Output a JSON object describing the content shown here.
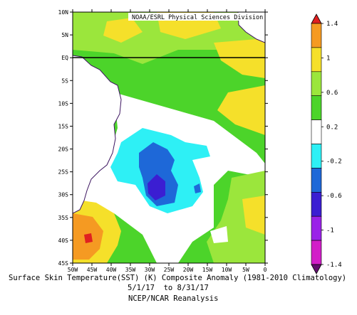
{
  "map": {
    "credit": "NOAA/ESRL Physical Sciences Division",
    "lat_labels": [
      "10N",
      "5N",
      "EQ",
      "5S",
      "10S",
      "15S",
      "20S",
      "25S",
      "30S",
      "35S",
      "40S",
      "45S"
    ],
    "lon_labels": [
      "50W",
      "45W",
      "40W",
      "35W",
      "30W",
      "25W",
      "20W",
      "15W",
      "10W",
      "5W",
      "0"
    ],
    "lat_range": [
      -45,
      10
    ],
    "lon_range": [
      -50,
      0
    ],
    "equator_line": "EQ",
    "colors": {
      "deep_red": "#e02020",
      "orange": "#f59a22",
      "yellow": "#f5e02a",
      "light_green": "#9be63c",
      "green": "#4cd42a",
      "white": "#ffffff",
      "cyan": "#2ef0f5",
      "blue": "#1e68d8",
      "indigo": "#3b1ed2",
      "purple": "#9a22e8",
      "magenta": "#d21ec8",
      "dark_purple": "#620e6e",
      "coast": "#3c1460"
    }
  },
  "colorbar": {
    "labels": [
      "1.4",
      "1",
      "0.6",
      "0.2",
      "-0.2",
      "-0.6",
      "-1",
      "-1.4"
    ],
    "levels": [
      {
        "color": "#f5e02a",
        "range": [
          1.0,
          1.4
        ]
      },
      {
        "color": "#f59a22",
        "range": [
          0.6,
          1.0
        ]
      }
    ]
  },
  "caption": {
    "line1": "Surface Skin Temperature(SST) (K) Composite Anomaly (1981-2010 Climatology)",
    "line2": "5/1/17  to 8/31/17",
    "line3": "NCEP/NCAR Reanalysis"
  }
}
